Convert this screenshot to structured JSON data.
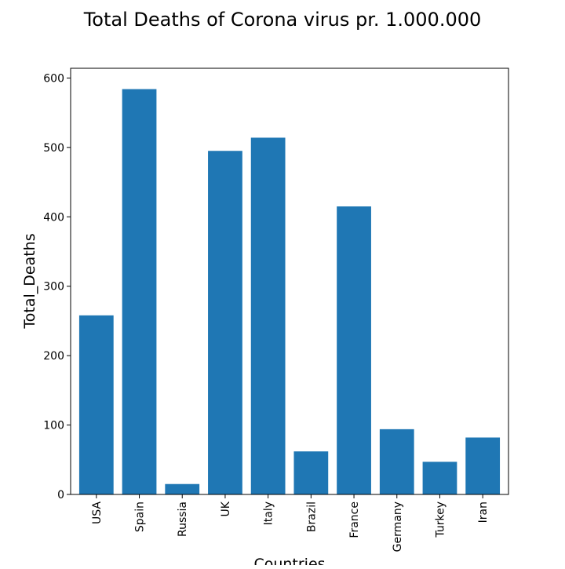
{
  "chart_data": {
    "type": "bar",
    "title": "Total Deaths of Corona virus pr. 1.000.000",
    "xlabel": "Countries",
    "ylabel": "Total_Deaths",
    "categories": [
      "USA",
      "Spain",
      "Russia",
      "UK",
      "Italy",
      "Brazil",
      "France",
      "Germany",
      "Turkey",
      "Iran"
    ],
    "values": [
      258,
      584,
      15,
      495,
      514,
      62,
      415,
      94,
      47,
      82
    ],
    "ylim": [
      0,
      614
    ],
    "yticks": [
      0,
      100,
      200,
      300,
      400,
      500,
      600
    ],
    "grid": false,
    "legend": "none",
    "bar_color": "#1f77b4"
  }
}
